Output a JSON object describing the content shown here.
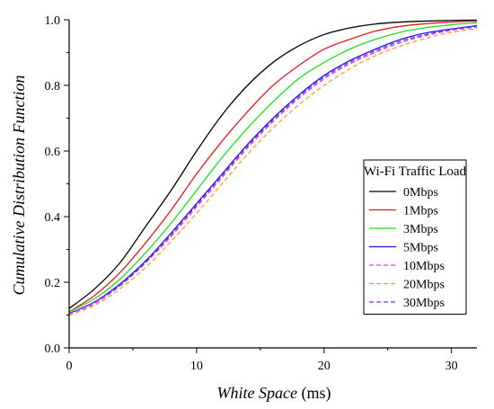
{
  "chart_data": {
    "type": "line",
    "title": "",
    "xlabel": "White Space",
    "xlabel_unit": "(ms)",
    "ylabel": "Cumulative Distribution Function",
    "xlim": [
      0,
      32
    ],
    "ylim": [
      0.0,
      1.0
    ],
    "xticks": [
      0,
      10,
      20,
      30
    ],
    "xtick_labels": [
      "0",
      "10",
      "20",
      "30"
    ],
    "yticks": [
      0.0,
      0.2,
      0.4,
      0.6,
      0.8,
      1.0
    ],
    "ytick_labels": [
      "0.0",
      "0.2",
      "0.4",
      "0.6",
      "0.8",
      "1.0"
    ],
    "grid": false,
    "legend": {
      "title": "Wi-Fi Traffic Load",
      "placement": "right"
    },
    "x": [
      0,
      2,
      4,
      6,
      8,
      10,
      12,
      14,
      16,
      18,
      20,
      22,
      24,
      26,
      28,
      30,
      32
    ],
    "series": [
      {
        "name": "0Mbps",
        "color": "#000000",
        "dash": "solid",
        "values": [
          0.12,
          0.18,
          0.26,
          0.37,
          0.48,
          0.6,
          0.71,
          0.8,
          0.87,
          0.92,
          0.955,
          0.975,
          0.987,
          0.993,
          0.996,
          0.998,
          0.999
        ]
      },
      {
        "name": "1Mbps",
        "color": "#e41a1c",
        "dash": "solid",
        "values": [
          0.11,
          0.16,
          0.23,
          0.32,
          0.42,
          0.53,
          0.63,
          0.72,
          0.8,
          0.86,
          0.91,
          0.94,
          0.965,
          0.98,
          0.988,
          0.993,
          0.996
        ]
      },
      {
        "name": "3Mbps",
        "color": "#22dd22",
        "dash": "solid",
        "values": [
          0.11,
          0.15,
          0.21,
          0.29,
          0.38,
          0.48,
          0.58,
          0.67,
          0.75,
          0.82,
          0.87,
          0.91,
          0.94,
          0.962,
          0.976,
          0.985,
          0.991
        ]
      },
      {
        "name": "5Mbps",
        "color": "#1a1aee",
        "dash": "solid",
        "values": [
          0.105,
          0.14,
          0.195,
          0.265,
          0.35,
          0.44,
          0.53,
          0.62,
          0.7,
          0.77,
          0.83,
          0.875,
          0.91,
          0.94,
          0.96,
          0.972,
          0.982
        ]
      },
      {
        "name": "10Mbps",
        "color": "#ee33ee",
        "dash": "dashed",
        "values": [
          0.1,
          0.135,
          0.19,
          0.26,
          0.34,
          0.43,
          0.52,
          0.61,
          0.69,
          0.76,
          0.82,
          0.865,
          0.9,
          0.93,
          0.952,
          0.968,
          0.978
        ]
      },
      {
        "name": "20Mbps",
        "color": "#ff9933",
        "dash": "dashed",
        "values": [
          0.1,
          0.13,
          0.18,
          0.245,
          0.325,
          0.41,
          0.5,
          0.59,
          0.67,
          0.74,
          0.8,
          0.85,
          0.89,
          0.92,
          0.944,
          0.962,
          0.973
        ]
      },
      {
        "name": "30Mbps",
        "color": "#7a33ee",
        "dash": "dashed",
        "values": [
          0.105,
          0.14,
          0.19,
          0.26,
          0.345,
          0.435,
          0.525,
          0.615,
          0.695,
          0.765,
          0.825,
          0.87,
          0.905,
          0.935,
          0.955,
          0.97,
          0.98
        ]
      }
    ]
  }
}
